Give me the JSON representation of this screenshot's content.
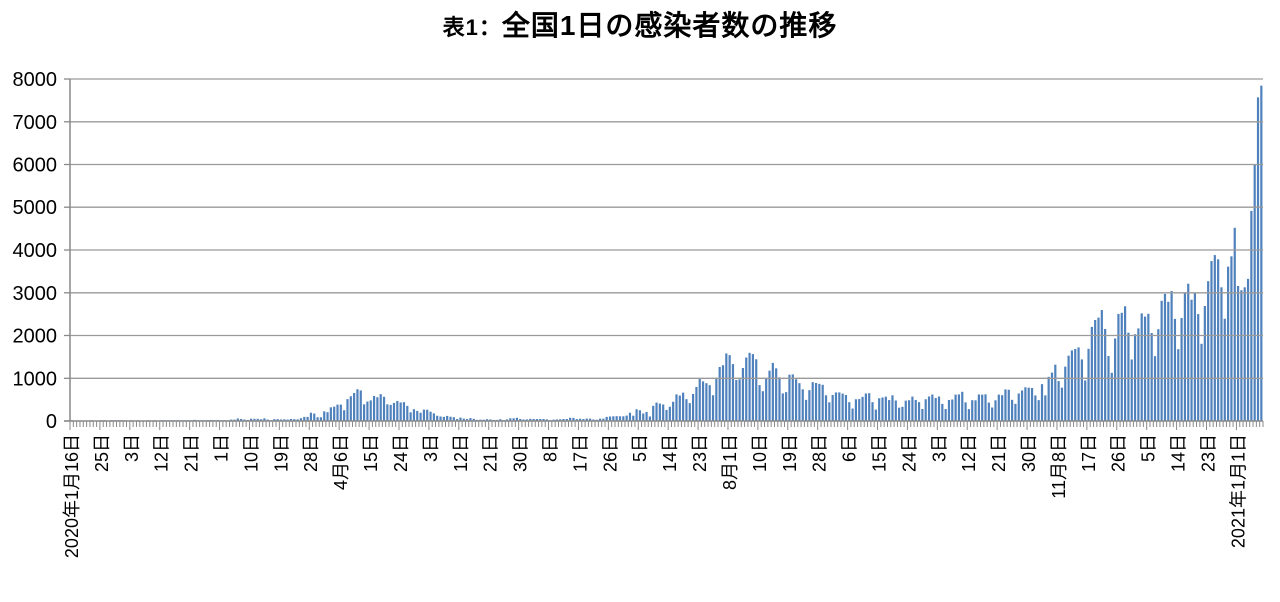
{
  "title": {
    "prefix": "表1：",
    "main": "全国1日の感染者数の推移"
  },
  "colors": {
    "bar": "#4f81bd",
    "gridline": "#9a9a9a",
    "axis": "#898989",
    "tick": "#898989",
    "text": "#000000",
    "background": "#ffffff"
  },
  "chart_data": {
    "type": "bar",
    "title": "表1：全国1日の感染者数の推移",
    "xlabel": "",
    "ylabel": "",
    "grid": "horizontal",
    "legend": "none",
    "ylim": [
      0,
      8000
    ],
    "y_ticks": [
      0,
      1000,
      2000,
      3000,
      4000,
      5000,
      6000,
      7000,
      8000
    ],
    "x_unit": "day",
    "x_label_interval": 9,
    "x_tick_labels": [
      "2020年1月16日",
      "25日",
      "3日",
      "12日",
      "21日",
      "1日",
      "10日",
      "19日",
      "28日",
      "4月6日",
      "15日",
      "24日",
      "3日",
      "12日",
      "21日",
      "30日",
      "8日",
      "17日",
      "26日",
      "5日",
      "14日",
      "23日",
      "8月1日",
      "10日",
      "19日",
      "28日",
      "6日",
      "15日",
      "24日",
      "3日",
      "12日",
      "21日",
      "30日",
      "11月8日",
      "17日",
      "26日",
      "5日",
      "14日",
      "23日",
      "2021年1月1日"
    ],
    "n_points": 359,
    "values": [
      1,
      0,
      0,
      0,
      0,
      0,
      1,
      0,
      0,
      1,
      1,
      0,
      1,
      1,
      2,
      2,
      1,
      0,
      1,
      0,
      1,
      0,
      0,
      1,
      0,
      4,
      0,
      1,
      1,
      3,
      8,
      5,
      3,
      7,
      9,
      12,
      10,
      27,
      9,
      14,
      12,
      22,
      24,
      20,
      24,
      15,
      14,
      16,
      33,
      31,
      59,
      47,
      33,
      26,
      54,
      52,
      51,
      41,
      63,
      33,
      15,
      44,
      44,
      36,
      39,
      34,
      47,
      43,
      39,
      65,
      96,
      96,
      194,
      173,
      87,
      87,
      225,
      206,
      320,
      336,
      383,
      383,
      252,
      511,
      579,
      655,
      743,
      715,
      390,
      455,
      482,
      585,
      556,
      628,
      566,
      390,
      377,
      423,
      469,
      434,
      441,
      353,
      203,
      276,
      236,
      193,
      266,
      263,
      218,
      178,
      123,
      105,
      96,
      119,
      100,
      88,
      45,
      79,
      55,
      44,
      68,
      50,
      27,
      31,
      31,
      42,
      37,
      26,
      26,
      42,
      21,
      37,
      63,
      63,
      75,
      47,
      35,
      37,
      50,
      47,
      47,
      46,
      46,
      38,
      21,
      32,
      38,
      41,
      47,
      47,
      75,
      72,
      45,
      53,
      45,
      56,
      56,
      35,
      29,
      55,
      55,
      96,
      105,
      110,
      113,
      110,
      110,
      127,
      194,
      124,
      274,
      251,
      176,
      211,
      105,
      355,
      430,
      407,
      386,
      259,
      333,
      450,
      622,
      595,
      663,
      511,
      418,
      632,
      795,
      981,
      927,
      885,
      838,
      603,
      981,
      1264,
      1305,
      1580,
      1540,
      1331,
      958,
      976,
      1239,
      1485,
      1595,
      1565,
      1444,
      839,
      697,
      983,
      1177,
      1359,
      1232,
      1021,
      645,
      675,
      1083,
      1090,
      976,
      885,
      741,
      494,
      722,
      908,
      889,
      869,
      847,
      601,
      437,
      609,
      668,
      669,
      641,
      608,
      440,
      292,
      508,
      513,
      565,
      644,
      650,
      440,
      267,
      531,
      550,
      569,
      490,
      601,
      480,
      312,
      331,
      477,
      486,
      571,
      492,
      441,
      281,
      509,
      574,
      619,
      539,
      573,
      401,
      281,
      491,
      503,
      617,
      622,
      683,
      436,
      278,
      487,
      484,
      621,
      617,
      624,
      431,
      316,
      484,
      617,
      604,
      739,
      731,
      495,
      402,
      644,
      715,
      789,
      779,
      772,
      598,
      488,
      862,
      600,
      1033,
      1132,
      1317,
      934,
      780,
      1271,
      1528,
      1651,
      1685,
      1722,
      1440,
      948,
      1688,
      2201,
      2363,
      2418,
      2596,
      2153,
      1520,
      1127,
      1930,
      2504,
      2531,
      2684,
      2066,
      1439,
      2030,
      2166,
      2518,
      2442,
      2508,
      2058,
      1516,
      2147,
      2812,
      2973,
      2788,
      3041,
      2388,
      1680,
      2410,
      2987,
      3211,
      2837,
      2988,
      2501,
      1806,
      2690,
      3271,
      3742,
      3881,
      3781,
      3127,
      2392,
      3610,
      3852,
      4520,
      3158,
      3059,
      3127,
      3325,
      4915,
      6004,
      7570,
      7844
    ]
  }
}
